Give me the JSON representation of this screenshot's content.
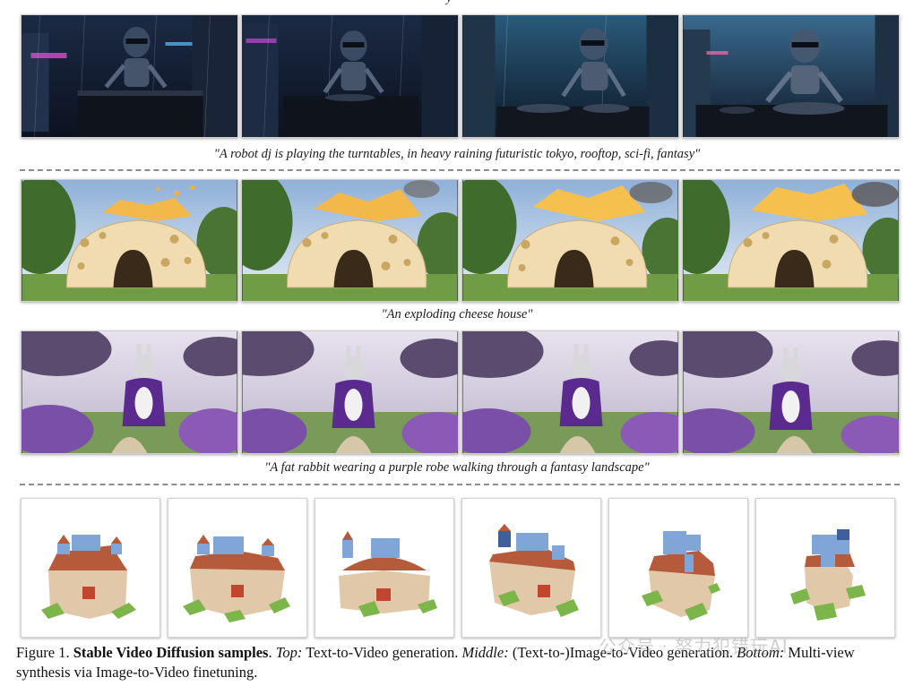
{
  "top_stub": "y",
  "rows": [
    {
      "caption": "\"A robot dj is playing the turntables, in heavy raining futuristic tokyo, rooftop, sci-fi, fantasy\""
    },
    {
      "caption": "\"An exploding cheese house\""
    },
    {
      "caption": "\"A fat rabbit wearing a purple robe walking through a fantasy landscape\""
    }
  ],
  "figure_caption": {
    "label": "Figure 1.",
    "title": "Stable Video Diffusion samples",
    "top_label": "Top:",
    "top_text": "Text-to-Video generation.",
    "middle_label": "Middle:",
    "middle_text": "(Text-to-)Image-to-Video generation.",
    "bottom_label": "Bottom:",
    "bottom_text": "Multi-view synthesis via Image-to-Video finetuning."
  },
  "watermark": "公众号 · 努力犯错玩AI",
  "colors": {
    "divider": "#8c8c8c",
    "robe_purple": "#5b2a8f",
    "cheese": "#f0dcb0",
    "roof_blue": "#7fa6d6",
    "roof_red": "#b65a3c",
    "grass_green": "#7cb54a"
  }
}
